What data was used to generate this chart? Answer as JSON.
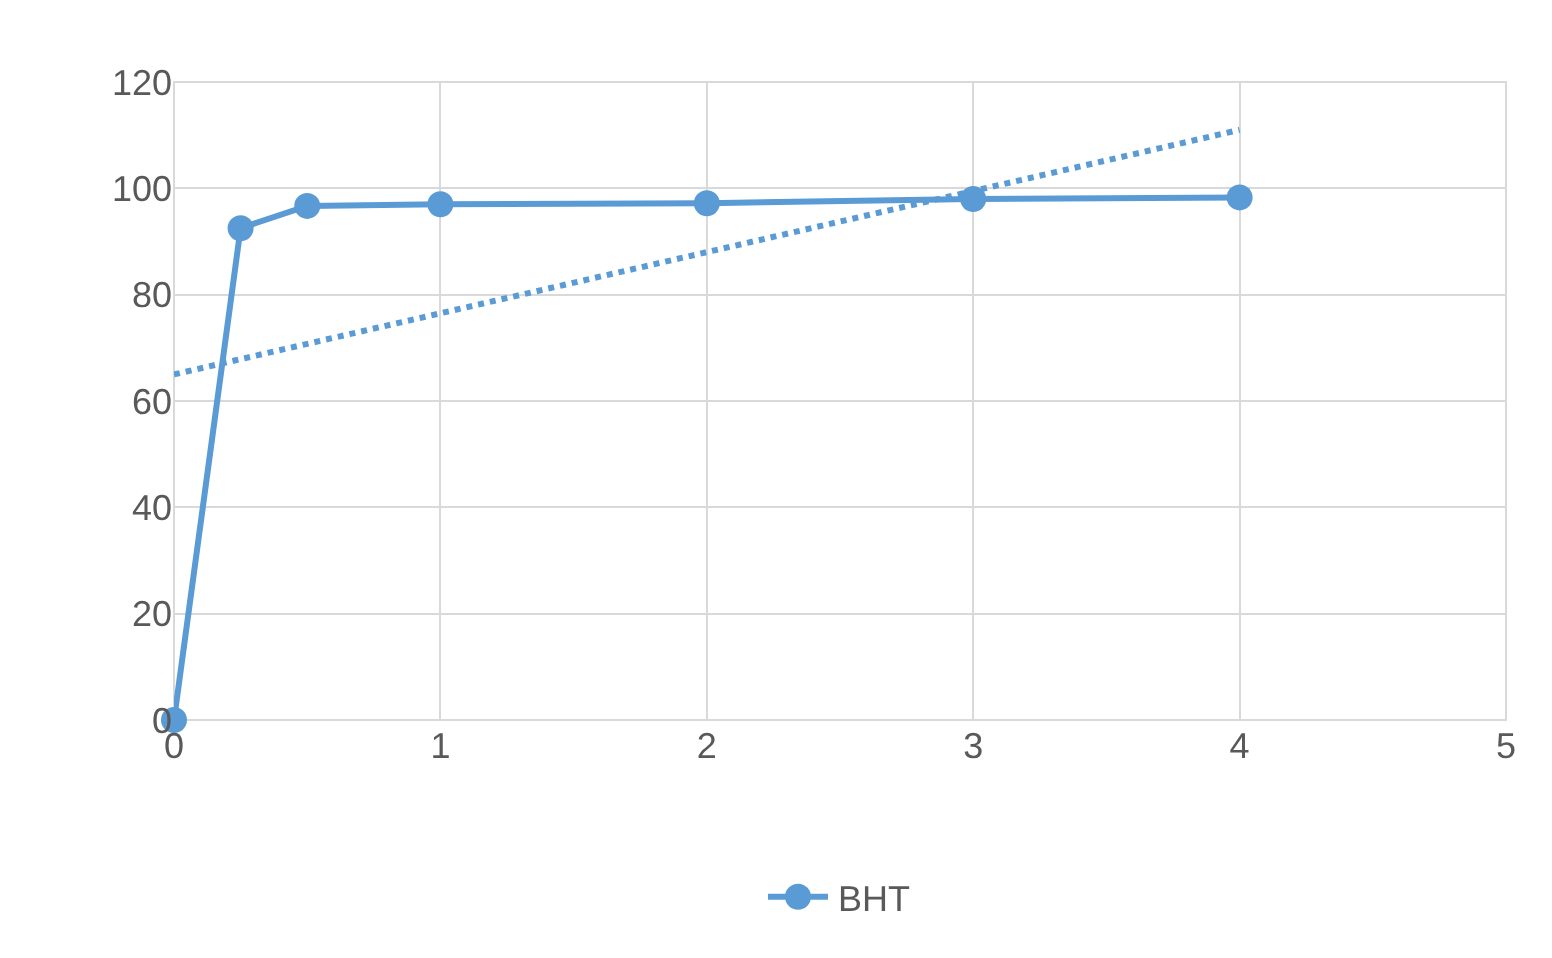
{
  "chart_data": {
    "type": "line",
    "xlim": [
      0,
      5
    ],
    "xticks": [
      0,
      1,
      2,
      3,
      4,
      5
    ],
    "ylim": [
      0,
      120
    ],
    "yticks": [
      0,
      20,
      40,
      60,
      80,
      100,
      120
    ],
    "grid": true,
    "legend": "bottom",
    "series": [
      {
        "name": "BHT",
        "color": "#5b9bd5",
        "x": [
          0,
          0.25,
          0.5,
          1,
          2,
          3,
          4
        ],
        "values": [
          0,
          92.5,
          96.7,
          97,
          97.2,
          98,
          98.3
        ],
        "marker": "circle",
        "line_style": "solid"
      },
      {
        "type": "line",
        "color": "#5b9bd5",
        "x": [
          0,
          4
        ],
        "values": [
          65,
          111
        ],
        "marker": "none",
        "line_style": "dotted"
      }
    ]
  }
}
